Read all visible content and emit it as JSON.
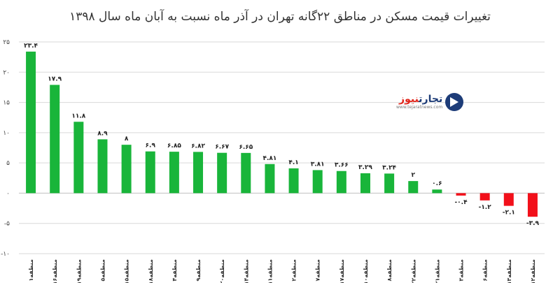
{
  "chart_data": {
    "type": "bar",
    "title": "تغییرات قیمت مسکن در مناطق ۲۲گانه تهران در آذر ماه نسبت به آبان ماه سال ۱۳۹۸",
    "ylim": [
      -10,
      25
    ],
    "yticks": [
      {
        "value": 25,
        "label": "۲۵"
      },
      {
        "value": 20,
        "label": "۲۰"
      },
      {
        "value": 15,
        "label": "۱۵"
      },
      {
        "value": 10,
        "label": "۱۰"
      },
      {
        "value": 5,
        "label": "۵"
      },
      {
        "value": 0,
        "label": "۰"
      },
      {
        "value": -5,
        "label": "-۵"
      },
      {
        "value": -10,
        "label": "-۱۰"
      }
    ],
    "categories": [
      "منطقه۱",
      "منطقه۱۶",
      "منطقه۱۹",
      "منطقه۵",
      "منطقه۱۵",
      "منطقه۱۸",
      "منطقه۴",
      "منطقه۹",
      "منطقه۲۰",
      "منطقه۱۴",
      "منطقه۱۱",
      "منطقه۲",
      "منطقه۷",
      "منطقه۱۷",
      "منطقه۱۰",
      "منطقه۸",
      "منطقه۲۲",
      "منطقه۲۱",
      "منطقه۳",
      "منطقه۶",
      "منطقه۱۳",
      "منطقه۱۲"
    ],
    "values": [
      23.4,
      17.9,
      11.8,
      8.9,
      8,
      6.9,
      6.85,
      6.82,
      6.67,
      6.65,
      4.81,
      4.1,
      3.81,
      3.66,
      3.29,
      3.24,
      2,
      0.6,
      -0.4,
      -1.2,
      -2.1,
      -3.9
    ],
    "data_labels": [
      "۲۳.۴",
      "۱۷.۹",
      "۱۱.۸",
      "۸.۹",
      "۸",
      "۶.۹",
      "۶.۸۵",
      "۶.۸۲",
      "۶.۶۷",
      "۶.۶۵",
      "۴.۸۱",
      "۴.۱",
      "۳.۸۱",
      "۳.۶۶",
      "۳.۲۹",
      "۳.۲۴",
      "۲",
      "۰.۶",
      "-۰.۴",
      "-۱.۲",
      "-۲.۱",
      "-۳.۹"
    ],
    "grid": true,
    "colors": {
      "positive": "#19b53a",
      "negative": "#f2101a",
      "grid": "#d9d9d9",
      "axis": "#bfbfbf"
    }
  },
  "logo": {
    "name_main": "تجارت",
    "name_accent": "نیوز",
    "url": "www.tejaratnews.com"
  }
}
